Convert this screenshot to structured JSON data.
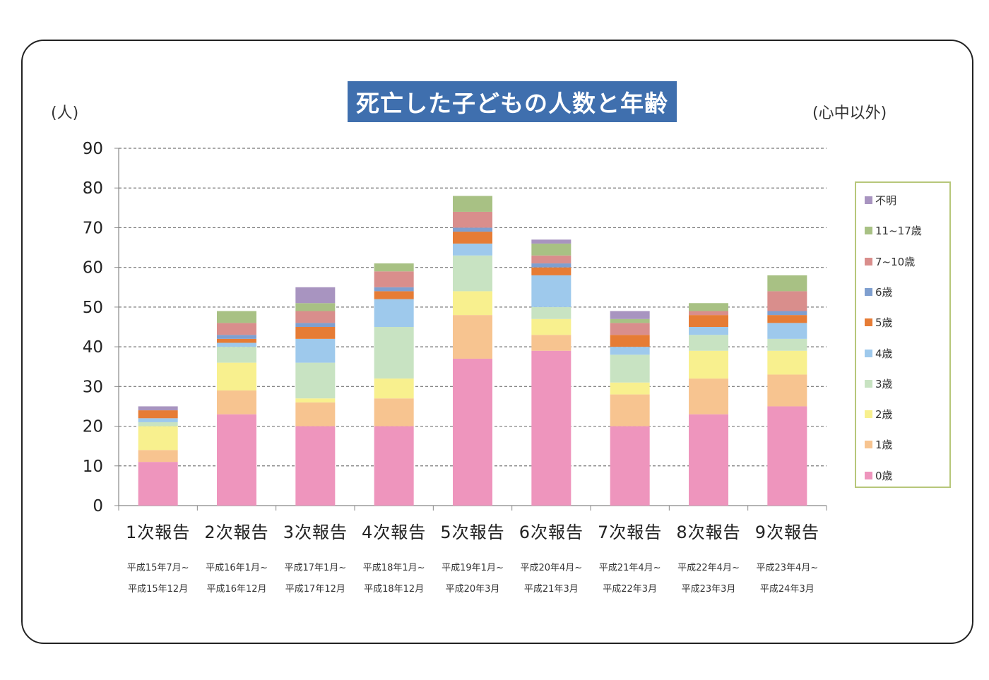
{
  "title": "死亡した子どもの人数と年齢",
  "unit_left": "(人)",
  "unit_right": "(心中以外)",
  "chart_data": {
    "type": "bar",
    "stacked": true,
    "categories": [
      "1次報告",
      "2次報告",
      "3次報告",
      "4次報告",
      "5次報告",
      "6次報告",
      "7次報告",
      "8次報告",
      "9次報告"
    ],
    "periods": [
      [
        "平成15年7月~",
        "平成15年12月"
      ],
      [
        "平成16年1月~",
        "平成16年12月"
      ],
      [
        "平成17年1月~",
        "平成17年12月"
      ],
      [
        "平成18年1月~",
        "平成18年12月"
      ],
      [
        "平成19年1月~",
        "平成20年3月"
      ],
      [
        "平成20年4月~",
        "平成21年3月"
      ],
      [
        "平成21年4月~",
        "平成22年3月"
      ],
      [
        "平成22年4月~",
        "平成23年3月"
      ],
      [
        "平成23年4月~",
        "平成24年3月"
      ]
    ],
    "ylim": [
      0,
      90
    ],
    "yticks": [
      0,
      10,
      20,
      30,
      40,
      50,
      60,
      70,
      80,
      90
    ],
    "grid": true,
    "legend_position": "right",
    "series": [
      {
        "name": "0歳",
        "color": "#ee95bd",
        "values": [
          11,
          23,
          20,
          20,
          37,
          39,
          20,
          23,
          25
        ]
      },
      {
        "name": "1歳",
        "color": "#f7c490",
        "values": [
          3,
          6,
          6,
          7,
          11,
          4,
          8,
          9,
          8
        ]
      },
      {
        "name": "2歳",
        "color": "#f8f08e",
        "values": [
          6,
          7,
          1,
          5,
          6,
          4,
          3,
          7,
          6
        ]
      },
      {
        "name": "3歳",
        "color": "#c8e3c2",
        "values": [
          1,
          4,
          9,
          13,
          9,
          3,
          7,
          4,
          3
        ]
      },
      {
        "name": "4歳",
        "color": "#9ec9ec",
        "values": [
          1,
          1,
          6,
          7,
          3,
          8,
          2,
          2,
          4
        ]
      },
      {
        "name": "5歳",
        "color": "#e67c35",
        "values": [
          2,
          1,
          3,
          2,
          3,
          2,
          3,
          3,
          2
        ]
      },
      {
        "name": "6歳",
        "color": "#7f9fcf",
        "values": [
          0,
          1,
          1,
          1,
          1,
          1,
          0,
          0,
          1
        ]
      },
      {
        "name": "7~10歳",
        "color": "#d98e8c",
        "values": [
          0,
          3,
          3,
          4,
          4,
          2,
          3,
          1,
          5
        ]
      },
      {
        "name": "11~17歳",
        "color": "#a8c184",
        "values": [
          0,
          3,
          2,
          2,
          4,
          3,
          1,
          2,
          4
        ]
      },
      {
        "name": "不明",
        "color": "#a894c0",
        "values": [
          1,
          0,
          4,
          0,
          0,
          1,
          2,
          0,
          0
        ]
      }
    ]
  }
}
